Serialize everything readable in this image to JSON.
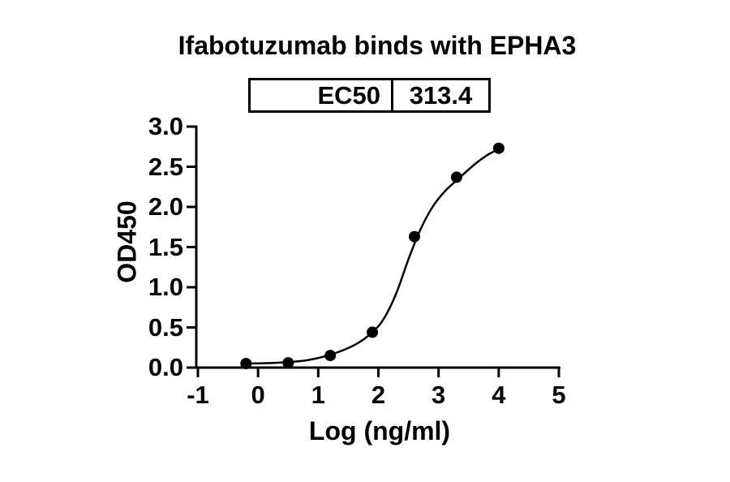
{
  "chart_data": {
    "type": "scatter",
    "title": "Ifabotuzumab binds with EPHA3",
    "xlabel": "Log (ng/ml)",
    "ylabel": "OD450",
    "xlim": [
      -1,
      5
    ],
    "ylim": [
      0,
      3
    ],
    "grid": false,
    "legend": false,
    "x_tick_values": [
      -1,
      0,
      1,
      2,
      3,
      4,
      5
    ],
    "x_tick_labels": [
      "-1",
      "0",
      "1",
      "2",
      "3",
      "4",
      "5"
    ],
    "y_tick_values": [
      0,
      0.5,
      1,
      1.5,
      2,
      2.5,
      3
    ],
    "y_tick_labels": [
      "0.0",
      "0.5",
      "1.0",
      "1.5",
      "2.0",
      "2.5",
      "3.0"
    ],
    "ec50": {
      "label": "EC50",
      "value": "313.4"
    },
    "series": [
      {
        "name": "Ifabotuzumab",
        "marker": "circle",
        "color": "#000000",
        "points": [
          [
            -0.2,
            0.05
          ],
          [
            0.5,
            0.06
          ],
          [
            1.2,
            0.15
          ],
          [
            1.9,
            0.44
          ],
          [
            2.6,
            1.63
          ],
          [
            3.3,
            2.37
          ],
          [
            4.0,
            2.73
          ]
        ]
      }
    ],
    "fit_curve": [
      [
        -0.2,
        0.05
      ],
      [
        0.3,
        0.06
      ],
      [
        0.8,
        0.09
      ],
      [
        1.2,
        0.16
      ],
      [
        1.6,
        0.28
      ],
      [
        1.9,
        0.44
      ],
      [
        2.1,
        0.62
      ],
      [
        2.3,
        0.93
      ],
      [
        2.5,
        1.35
      ],
      [
        2.7,
        1.72
      ],
      [
        2.9,
        2.0
      ],
      [
        3.1,
        2.19
      ],
      [
        3.3,
        2.33
      ],
      [
        3.6,
        2.53
      ],
      [
        3.8,
        2.64
      ],
      [
        4.0,
        2.72
      ]
    ],
    "colors": {
      "axis": "#000000",
      "text": "#000000",
      "background": "#ffffff"
    }
  }
}
